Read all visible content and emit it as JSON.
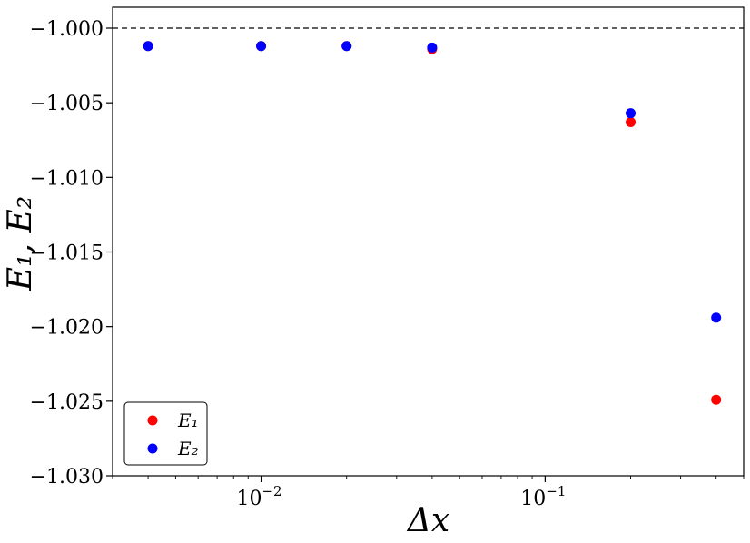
{
  "chart_data": {
    "type": "scatter",
    "x_scale": "log",
    "xlabel": "Δx",
    "ylabel": "E₁, E₂",
    "xlim": [
      0.003,
      0.5
    ],
    "ylim": [
      -1.03,
      -0.9986
    ],
    "y_ticks": [
      -1.0,
      -1.005,
      -1.01,
      -1.015,
      -1.02,
      -1.025,
      -1.03
    ],
    "y_tick_labels": [
      "−1.000",
      "−1.005",
      "−1.010",
      "−1.015",
      "−1.020",
      "−1.025",
      "−1.030"
    ],
    "x_ticks": [
      0.01,
      0.1
    ],
    "x_tick_labels": [
      {
        "base": "10",
        "exp": "−2"
      },
      {
        "base": "10",
        "exp": "−1"
      }
    ],
    "reference_line": {
      "y": -1.0,
      "style": "dashed",
      "color": "#000000"
    },
    "legend": {
      "position": "bottom-left"
    },
    "series": [
      {
        "name": "E₁",
        "color": "#ff0000",
        "points": [
          {
            "x": 0.004,
            "y": -1.0012
          },
          {
            "x": 0.01,
            "y": -1.0012
          },
          {
            "x": 0.02,
            "y": -1.0012
          },
          {
            "x": 0.04,
            "y": -1.0014
          },
          {
            "x": 0.2,
            "y": -1.0063
          },
          {
            "x": 0.4,
            "y": -1.0249
          }
        ]
      },
      {
        "name": "E₂",
        "color": "#0000ff",
        "points": [
          {
            "x": 0.004,
            "y": -1.0012
          },
          {
            "x": 0.01,
            "y": -1.0012
          },
          {
            "x": 0.02,
            "y": -1.0012
          },
          {
            "x": 0.04,
            "y": -1.0013
          },
          {
            "x": 0.2,
            "y": -1.0057
          },
          {
            "x": 0.4,
            "y": -1.0194
          }
        ]
      }
    ]
  }
}
